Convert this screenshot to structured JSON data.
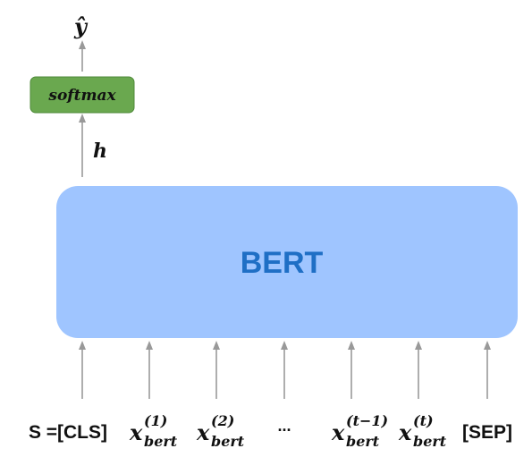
{
  "output": {
    "label": "ŷ"
  },
  "softmax": {
    "label": "softmax",
    "color": "#6aa84f",
    "border": "#4f8a3a"
  },
  "hidden": {
    "label": "h"
  },
  "bert": {
    "label": "BERT",
    "fill": "#9fc5ff",
    "text_color": "#1f6fc5"
  },
  "arrow_color": "#999999",
  "sequence": {
    "prefix": "S =",
    "tokens": [
      {
        "text": "[CLS]"
      },
      {
        "base": "x",
        "sub": "bert",
        "sup": "(1)"
      },
      {
        "base": "x",
        "sub": "bert",
        "sup": "(2)"
      },
      {
        "text": "..."
      },
      {
        "base": "x",
        "sub": "bert",
        "sup": "(t−1)"
      },
      {
        "base": "x",
        "sub": "bert",
        "sup": "(t)"
      },
      {
        "text": "[SEP]"
      }
    ]
  }
}
